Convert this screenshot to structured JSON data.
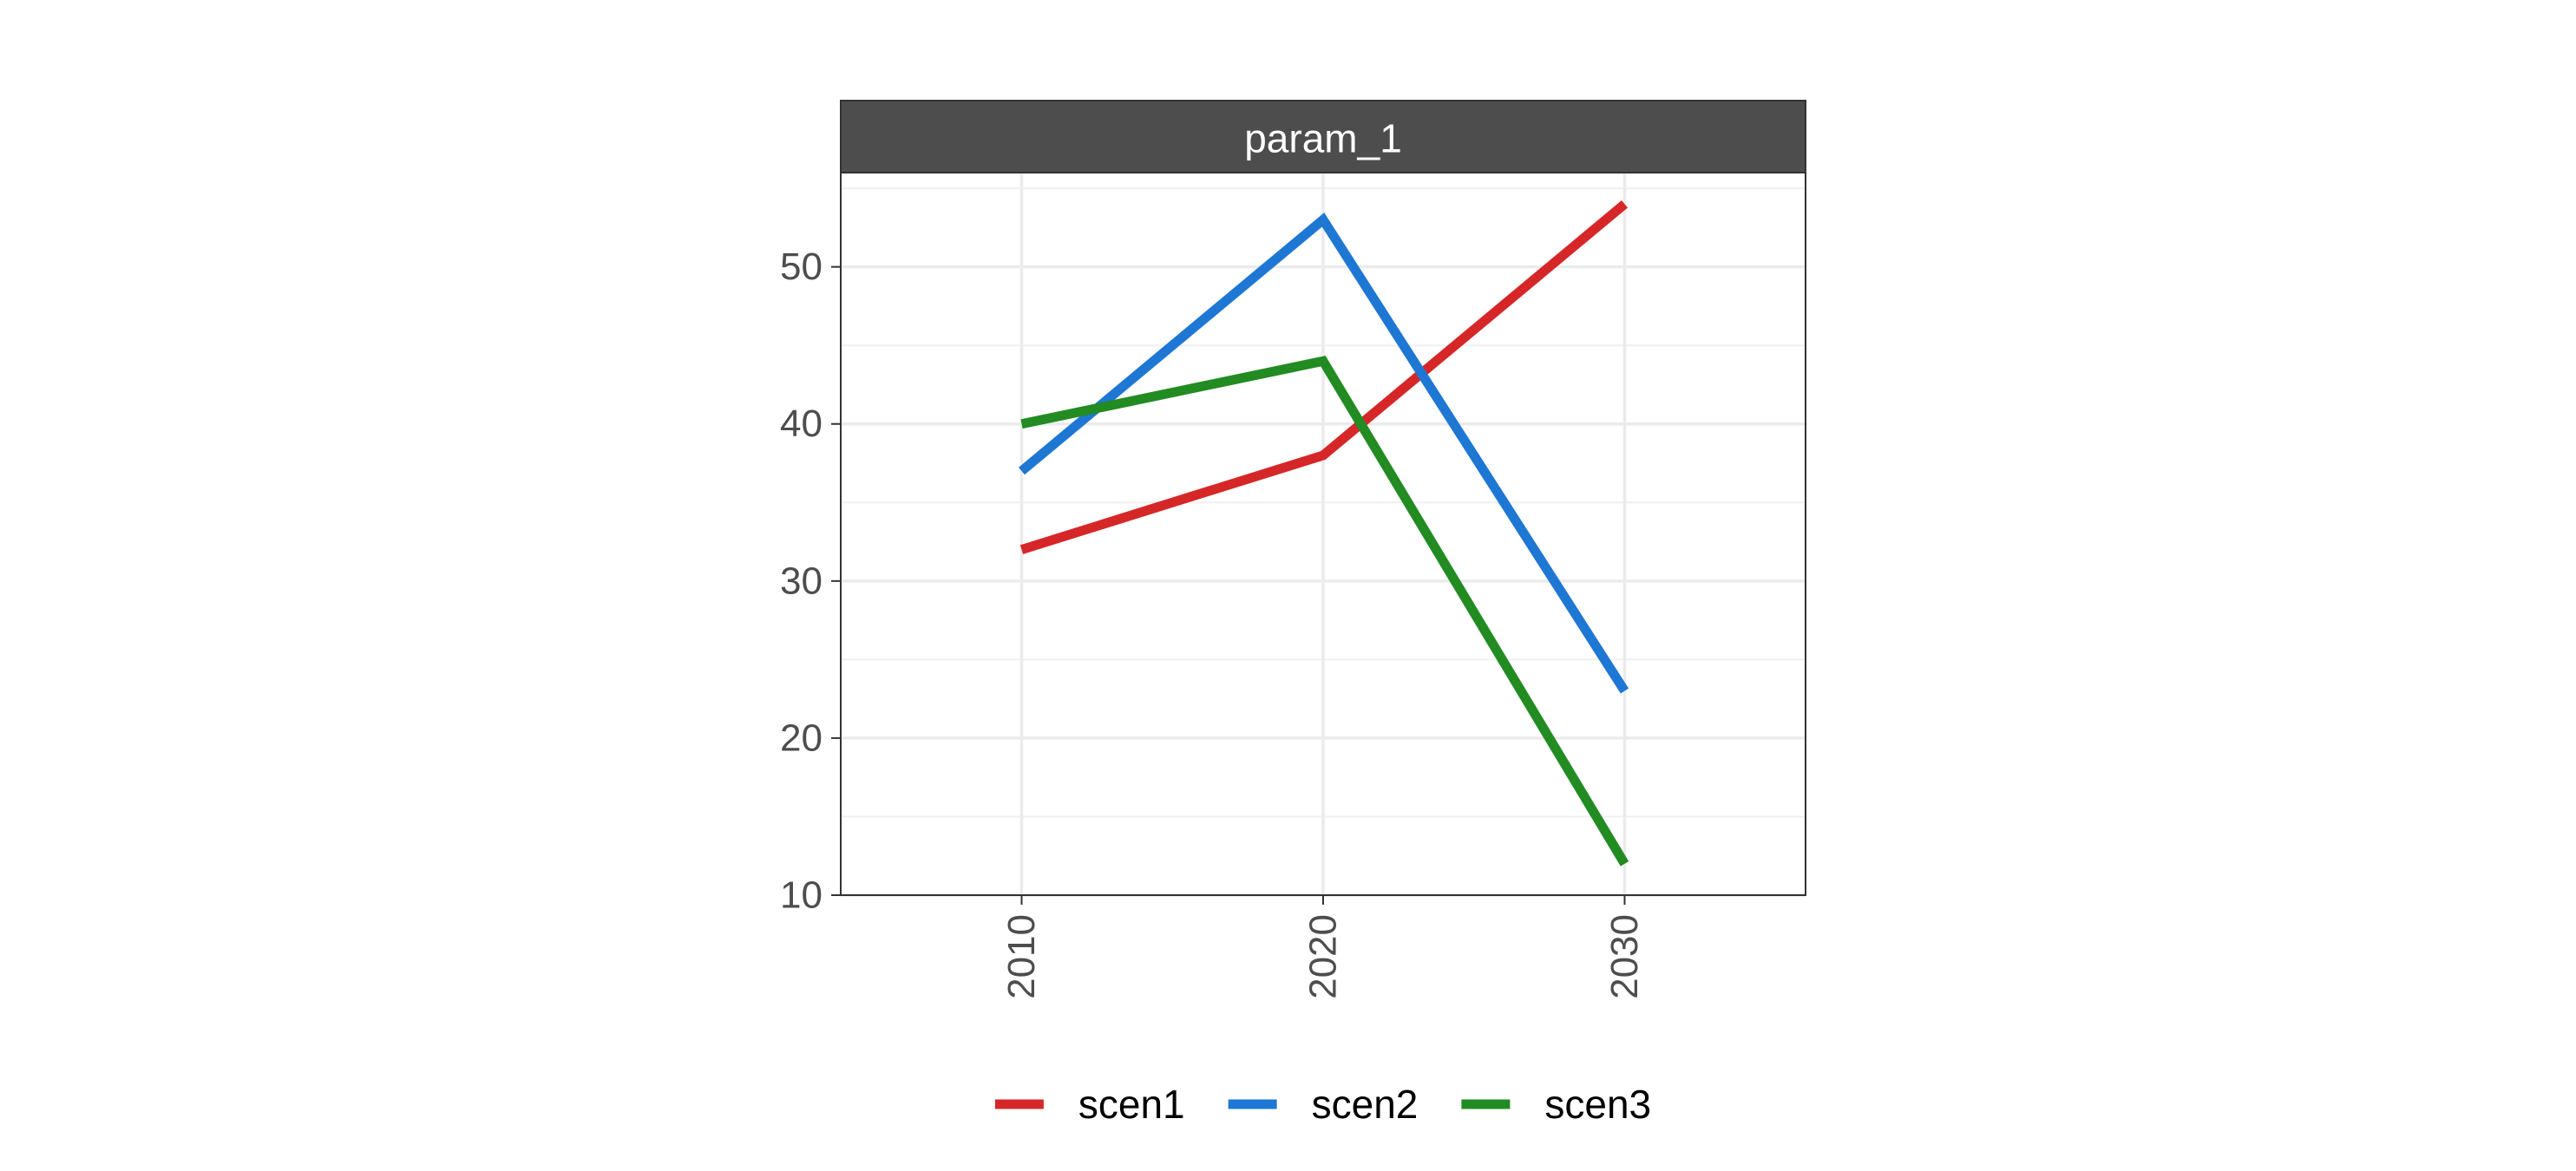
{
  "chart_data": {
    "type": "line",
    "facet_title": "param_1",
    "x": [
      2010,
      2020,
      2030
    ],
    "x_tick_labels": [
      "2010",
      "2020",
      "2030"
    ],
    "xlim": [
      2004,
      2036
    ],
    "y_ticks": [
      10,
      20,
      30,
      40,
      50
    ],
    "y_tick_labels": [
      "10",
      "20",
      "30",
      "40",
      "50"
    ],
    "ylim": [
      10,
      56
    ],
    "grid": true,
    "legend_position": "bottom",
    "series": [
      {
        "name": "scen1",
        "color": "#d62728",
        "values": [
          32,
          38,
          54
        ]
      },
      {
        "name": "scen2",
        "color": "#1f77d4",
        "values": [
          37,
          53,
          23
        ]
      },
      {
        "name": "scen3",
        "color": "#228b22",
        "values": [
          40,
          44,
          12
        ]
      }
    ]
  }
}
